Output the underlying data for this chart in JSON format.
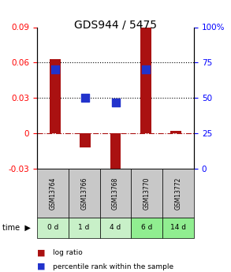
{
  "title": "GDS944 / 5475",
  "samples": [
    "GSM13764",
    "GSM13766",
    "GSM13768",
    "GSM13770",
    "GSM13772"
  ],
  "time_labels": [
    "0 d",
    "1 d",
    "4 d",
    "6 d",
    "14 d"
  ],
  "log_ratio": [
    0.063,
    -0.012,
    -0.037,
    0.09,
    0.002
  ],
  "percentile_rank": [
    70,
    50,
    47,
    70,
    null
  ],
  "ylim_left": [
    -0.03,
    0.09
  ],
  "ylim_right": [
    0,
    100
  ],
  "yticks_left": [
    -0.03,
    0,
    0.03,
    0.06,
    0.09
  ],
  "yticks_right": [
    0,
    25,
    50,
    75,
    100
  ],
  "ytick_labels_right": [
    "0",
    "25",
    "50",
    "75",
    "100%"
  ],
  "hlines_dotted": [
    0.03,
    0.06
  ],
  "hline_dashed": 0,
  "bar_color": "#aa1111",
  "dot_color": "#2233cc",
  "bar_width": 0.35,
  "dot_size": 60,
  "sample_bg_color": "#c8c8c8",
  "time_bg_colors": [
    "#c8f0c8",
    "#c8f0c8",
    "#c8f0c8",
    "#90ee90",
    "#90ee90"
  ],
  "legend_labels": [
    "log ratio",
    "percentile rank within the sample"
  ],
  "legend_colors": [
    "#aa1111",
    "#2233cc"
  ],
  "time_label_prefix": "time"
}
